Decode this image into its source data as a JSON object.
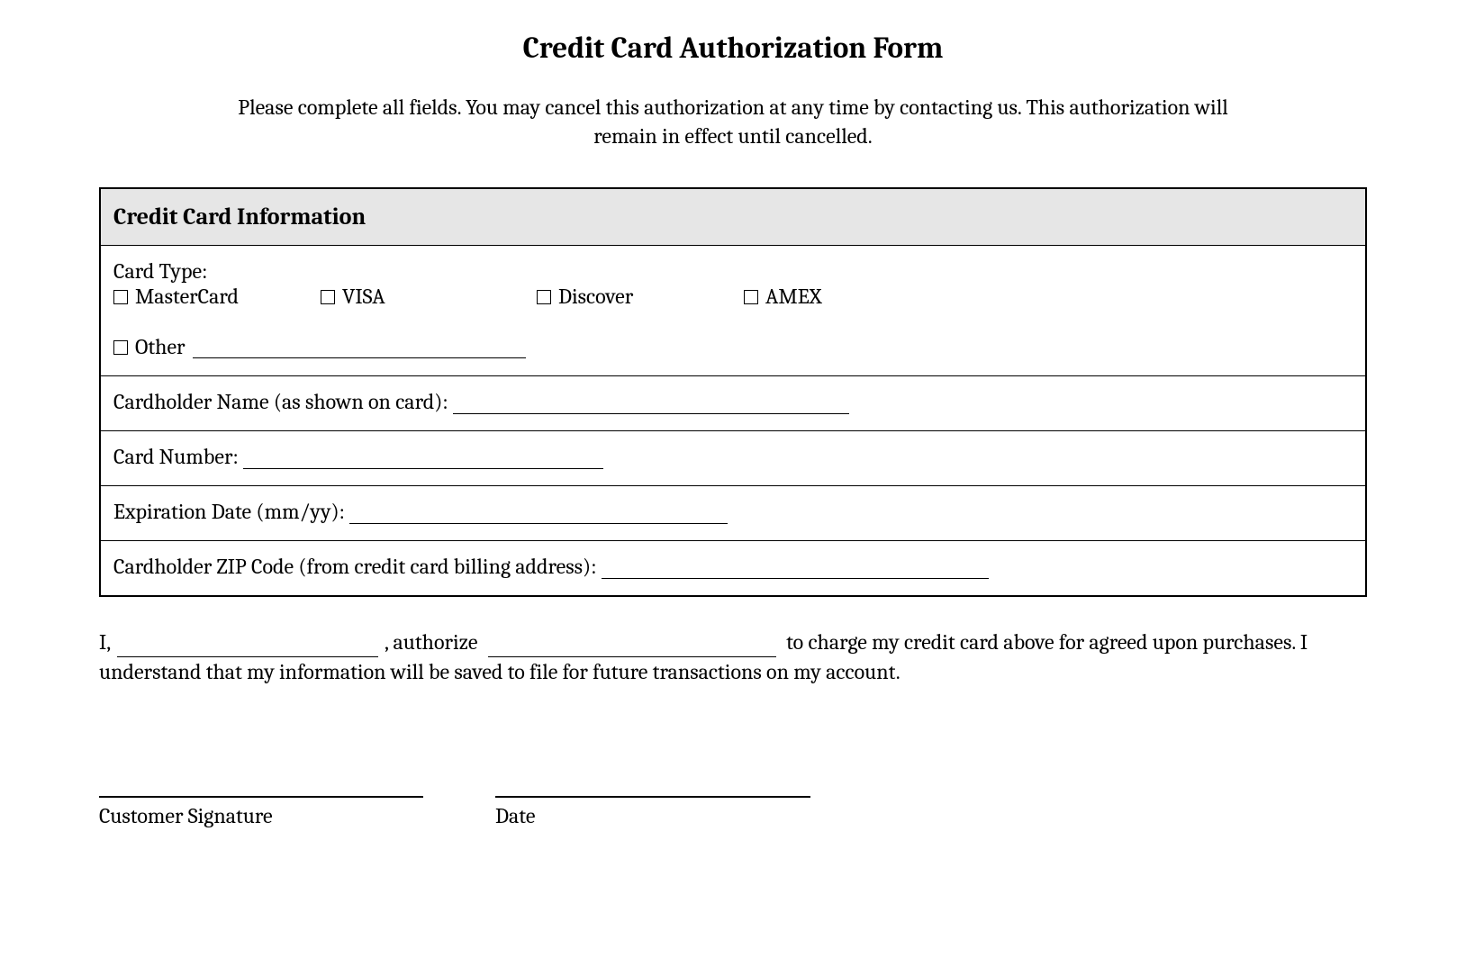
{
  "title": "Credit Card Authorization Form",
  "intro": "Please complete all fields. You may cancel this authorization at any time by contacting us. This authorization will remain in effect until cancelled.",
  "section_header": "Credit Card Information",
  "card_type": {
    "label": "Card Type:",
    "options": {
      "mastercard": "MasterCard",
      "visa": "VISA",
      "discover": "Discover",
      "amex": "AMEX",
      "other": "Other"
    }
  },
  "fields": {
    "cardholder_name": "Cardholder Name (as shown on card):",
    "card_number": "Card Number:",
    "expiration": "Expiration Date (mm/yy):",
    "zip": "Cardholder ZIP Code (from credit card billing address):"
  },
  "authorization": {
    "prefix": "I,",
    "middle": ", authorize",
    "suffix": "to charge my credit card above for agreed upon purchases. I understand that my information will be saved to file for future transactions on my account."
  },
  "signature": {
    "customer": "Customer Signature",
    "date": "Date"
  },
  "style": {
    "line_widths": {
      "cardholder_name": 440,
      "card_number": 400,
      "expiration": 420,
      "zip": 430,
      "auth_name": 290,
      "auth_merchant": 320,
      "sig_customer": 360,
      "sig_date": 350
    },
    "colors": {
      "background": "#ffffff",
      "text": "#000000",
      "header_bg": "#e6e6e6",
      "border": "#000000"
    },
    "font_family": "Cambria, Georgia, serif",
    "title_fontsize": 33,
    "body_fontsize": 24,
    "header_fontsize": 26
  }
}
